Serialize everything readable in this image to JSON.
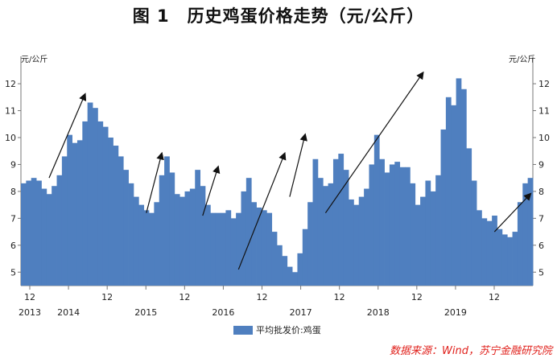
{
  "title": "图 1　历史鸡蛋价格走势（元/公斤）",
  "source_note": "数据来源：Wind，苏宁金融研究院",
  "colors": {
    "bars": "#4f7fbf",
    "arrows": "#111111",
    "source": "#e0201b"
  },
  "chart_data": {
    "type": "bar",
    "unit_left": "元/公斤",
    "unit_right": "元/公斤",
    "ylim": [
      4.5,
      12.6
    ],
    "yticks": [
      5,
      6,
      7,
      8,
      9,
      10,
      11,
      12
    ],
    "xticks": [
      {
        "month": "12",
        "year": "2013"
      },
      {
        "month": "",
        "year": "2014"
      },
      {
        "month": "12",
        "year": ""
      },
      {
        "month": "",
        "year": "2015"
      },
      {
        "month": "12",
        "year": ""
      },
      {
        "month": "",
        "year": "2016"
      },
      {
        "month": "12",
        "year": ""
      },
      {
        "month": "",
        "year": "2017"
      },
      {
        "month": "12",
        "year": ""
      },
      {
        "month": "",
        "year": "2018"
      },
      {
        "month": "12",
        "year": ""
      },
      {
        "month": "",
        "year": "2019"
      },
      {
        "month": "12",
        "year": ""
      }
    ],
    "series": [
      {
        "name": "平均批发价:鸡蛋",
        "x": [
          "2013-01",
          "2013-02",
          "2013-03",
          "2013-04",
          "2013-05",
          "2013-06",
          "2013-07",
          "2013-08",
          "2013-09",
          "2013-10",
          "2013-11",
          "2013-12",
          "2014-01",
          "2014-02",
          "2014-03",
          "2014-04",
          "2014-05",
          "2014-06",
          "2014-07",
          "2014-08",
          "2014-09",
          "2014-10",
          "2014-11",
          "2014-12",
          "2015-01",
          "2015-02",
          "2015-03",
          "2015-04",
          "2015-05",
          "2015-06",
          "2015-07",
          "2015-08",
          "2015-09",
          "2015-10",
          "2015-11",
          "2015-12",
          "2016-01",
          "2016-02",
          "2016-03",
          "2016-04",
          "2016-05",
          "2016-06",
          "2016-07",
          "2016-08",
          "2016-09",
          "2016-10",
          "2016-11",
          "2016-12",
          "2017-01",
          "2017-02",
          "2017-03",
          "2017-04",
          "2017-05",
          "2017-06",
          "2017-07",
          "2017-08",
          "2017-09",
          "2017-10",
          "2017-11",
          "2017-12",
          "2018-01",
          "2018-02",
          "2018-03",
          "2018-04",
          "2018-05",
          "2018-06",
          "2018-07",
          "2018-08",
          "2018-09",
          "2018-10",
          "2018-11",
          "2018-12",
          "2019-01",
          "2019-02",
          "2019-03",
          "2019-04",
          "2019-05",
          "2019-06",
          "2019-07",
          "2019-08",
          "2019-09",
          "2019-10",
          "2019-11",
          "2019-12",
          "2020-01",
          "2020-02",
          "2020-03",
          "2020-04",
          "2020-05",
          "2020-06",
          "2020-07",
          "2020-08",
          "2020-09",
          "2020-10",
          "2020-11",
          "2020-12",
          "2021-01",
          "2021-02",
          "2021-03",
          "2021-04"
        ],
        "values": [
          8.3,
          8.4,
          8.5,
          8.4,
          8.1,
          7.9,
          8.2,
          8.6,
          9.3,
          10.1,
          9.8,
          9.9,
          10.6,
          11.3,
          11.1,
          10.6,
          10.4,
          10.0,
          9.7,
          9.3,
          8.8,
          8.3,
          7.8,
          7.5,
          7.3,
          7.2,
          7.6,
          8.6,
          9.3,
          8.7,
          7.9,
          7.8,
          8.0,
          8.1,
          8.8,
          8.2,
          7.5,
          7.2,
          7.2,
          7.2,
          7.3,
          7.0,
          7.2,
          8.0,
          8.5,
          7.6,
          7.4,
          7.3,
          7.2,
          6.5,
          6.0,
          5.6,
          5.2,
          5.0,
          5.7,
          6.6,
          7.6,
          9.2,
          8.5,
          8.2,
          8.3,
          9.2,
          9.4,
          8.8,
          7.7,
          7.5,
          7.8,
          8.1,
          9.0,
          10.1,
          9.2,
          8.7,
          9.0,
          9.1,
          8.9,
          8.9,
          8.3,
          7.5,
          7.8,
          8.4,
          8.0,
          8.6,
          10.3,
          11.5,
          11.2,
          12.2,
          11.8,
          9.6,
          8.4,
          7.3,
          7.0,
          6.9,
          7.1,
          6.6,
          6.4,
          6.3,
          6.5,
          7.6,
          8.3,
          8.5
        ]
      }
    ],
    "trend_arrows": [
      {
        "from": [
          "2013-06",
          8.5
        ],
        "to": [
          "2014-01",
          11.6
        ]
      },
      {
        "from": [
          "2015-01",
          7.2
        ],
        "to": [
          "2015-04",
          9.4
        ]
      },
      {
        "from": [
          "2015-12",
          7.1
        ],
        "to": [
          "2016-03",
          8.9
        ]
      },
      {
        "from": [
          "2016-07",
          5.1
        ],
        "to": [
          "2017-04",
          9.4
        ]
      },
      {
        "from": [
          "2017-05",
          7.8
        ],
        "to": [
          "2017-08",
          10.1
        ]
      },
      {
        "from": [
          "2017-12",
          7.2
        ],
        "to": [
          "2019-07",
          12.4
        ]
      },
      {
        "from": [
          "2020-09",
          6.5
        ],
        "to": [
          "2021-04",
          7.9
        ]
      }
    ]
  }
}
